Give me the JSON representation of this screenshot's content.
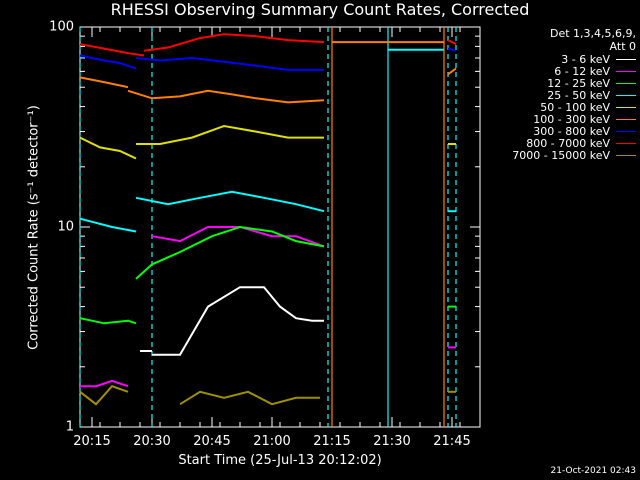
{
  "chart_data": {
    "type": "line",
    "title": "RHESSI Observing Summary Count Rates, Corrected",
    "xlabel": "Start Time (25-Jul-13 20:12:02)",
    "ylabel": "Corrected Count Rate (s⁻¹ detector⁻¹)",
    "yscale": "log",
    "ylim": [
      1,
      100
    ],
    "xlim_minutes": [
      0,
      100
    ],
    "x_ticks": [
      {
        "label": "20:15",
        "minutes": 3
      },
      {
        "label": "20:30",
        "minutes": 18
      },
      {
        "label": "20:45",
        "minutes": 33
      },
      {
        "label": "21:00",
        "minutes": 48
      },
      {
        "label": "21:15",
        "minutes": 63
      },
      {
        "label": "21:30",
        "minutes": 78
      },
      {
        "label": "21:45",
        "minutes": 93
      }
    ],
    "y_ticks": [
      {
        "label": "1",
        "value": 1
      },
      {
        "label": "10",
        "value": 10
      },
      {
        "label": "100",
        "value": 100
      }
    ],
    "legend_header": [
      "Det 1,3,4,5,6,9,",
      "Att 0"
    ],
    "legend_position": "top-right",
    "series": [
      {
        "name": "3 - 6 keV",
        "color": "#ffffff",
        "segments": [
          [
            [
              15,
              2.4
            ],
            [
              18,
              2.4
            ]
          ],
          [
            [
              18,
              2.3
            ],
            [
              25,
              2.3
            ],
            [
              32,
              4
            ],
            [
              40,
              5
            ],
            [
              46,
              5
            ],
            [
              50,
              4
            ],
            [
              54,
              3.5
            ],
            [
              58,
              3.4
            ],
            [
              61,
              3.4
            ]
          ]
        ]
      },
      {
        "name": "6 - 12 keV",
        "color": "#ff00ff",
        "segments": [
          [
            [
              0,
              1.6
            ],
            [
              4,
              1.6
            ],
            [
              8,
              1.7
            ],
            [
              12,
              1.6
            ]
          ],
          [
            [
              18,
              9
            ],
            [
              25,
              8.5
            ],
            [
              32,
              10
            ],
            [
              40,
              10
            ],
            [
              48,
              9
            ],
            [
              54,
              9
            ],
            [
              61,
              8
            ]
          ]
        ]
      },
      {
        "name": "12 - 25 keV",
        "color": "#00ff00",
        "segments": [
          [
            [
              0,
              3.5
            ],
            [
              6,
              3.3
            ],
            [
              12,
              3.4
            ],
            [
              14,
              3.3
            ]
          ],
          [
            [
              14,
              5.5
            ],
            [
              18,
              6.5
            ],
            [
              25,
              7.5
            ],
            [
              33,
              9
            ],
            [
              40,
              10
            ],
            [
              48,
              9.5
            ],
            [
              54,
              8.5
            ],
            [
              61,
              8
            ]
          ]
        ]
      },
      {
        "name": "25 - 50 keV",
        "color": "#00ffff",
        "segments": [
          [
            [
              0,
              11
            ],
            [
              8,
              10
            ],
            [
              14,
              9.5
            ]
          ],
          [
            [
              14,
              14
            ],
            [
              22,
              13
            ],
            [
              30,
              14
            ],
            [
              38,
              15
            ],
            [
              46,
              14
            ],
            [
              54,
              13
            ],
            [
              61,
              12
            ]
          ]
        ]
      },
      {
        "name": "50 - 100 keV",
        "color": "#e0e000",
        "segments": [
          [
            [
              0,
              28
            ],
            [
              5,
              25
            ],
            [
              10,
              24
            ],
            [
              14,
              22
            ]
          ],
          [
            [
              14,
              26
            ],
            [
              20,
              26
            ],
            [
              28,
              28
            ],
            [
              36,
              32
            ],
            [
              44,
              30
            ],
            [
              52,
              28
            ],
            [
              61,
              28
            ]
          ]
        ]
      },
      {
        "name": "100 - 300 keV",
        "color": "#ff8000",
        "segments": [
          [
            [
              0,
              56
            ],
            [
              6,
              53
            ],
            [
              12,
              50
            ]
          ],
          [
            [
              12,
              48
            ],
            [
              18,
              44
            ],
            [
              25,
              45
            ],
            [
              32,
              48
            ],
            [
              38,
              46
            ],
            [
              44,
              44
            ],
            [
              52,
              42
            ],
            [
              61,
              43
            ]
          ]
        ]
      },
      {
        "name": "300 - 800 keV",
        "color": "#0000ff",
        "segments": [
          [
            [
              0,
              72
            ],
            [
              6,
              68
            ],
            [
              10,
              66
            ],
            [
              14,
              62
            ]
          ],
          [
            [
              14,
              70
            ],
            [
              20,
              68
            ],
            [
              28,
              70
            ],
            [
              36,
              67
            ],
            [
              44,
              64
            ],
            [
              52,
              61
            ],
            [
              61,
              61
            ]
          ]
        ]
      },
      {
        "name": "800 - 7000 keV",
        "color": "#ff0000",
        "segments": [
          [
            [
              0,
              82
            ],
            [
              6,
              78
            ],
            [
              12,
              74
            ],
            [
              16,
              72
            ]
          ],
          [
            [
              16,
              76
            ],
            [
              22,
              79
            ],
            [
              30,
              88
            ],
            [
              36,
              92
            ],
            [
              44,
              90
            ],
            [
              52,
              86
            ],
            [
              61,
              84
            ]
          ]
        ]
      },
      {
        "name": "7000 - 15000 keV",
        "color": "#a09000",
        "segments": [
          [
            [
              0,
              1.5
            ],
            [
              4,
              1.3
            ],
            [
              8,
              1.6
            ],
            [
              12,
              1.5
            ]
          ],
          [
            [
              25,
              1.3
            ],
            [
              30,
              1.5
            ],
            [
              36,
              1.4
            ],
            [
              42,
              1.5
            ],
            [
              48,
              1.3
            ],
            [
              54,
              1.4
            ],
            [
              60,
              1.4
            ]
          ]
        ]
      }
    ],
    "right_segments": [
      {
        "color": "#ff8000",
        "points": [
          [
            63,
            84
          ],
          [
            91,
            84
          ]
        ]
      },
      {
        "color": "#00ffff",
        "points": [
          [
            77,
            77
          ],
          [
            91,
            77
          ]
        ]
      },
      {
        "color": "#ff0000",
        "points": [
          [
            92,
            86
          ],
          [
            94,
            82
          ]
        ]
      },
      {
        "color": "#0000ff",
        "points": [
          [
            92,
            78
          ],
          [
            94,
            76
          ]
        ]
      },
      {
        "color": "#ff8000",
        "points": [
          [
            92,
            58
          ],
          [
            94,
            62
          ]
        ]
      },
      {
        "color": "#e0e000",
        "points": [
          [
            92,
            26
          ],
          [
            94,
            26
          ]
        ]
      },
      {
        "color": "#00ffff",
        "points": [
          [
            92,
            12
          ],
          [
            94,
            12
          ]
        ]
      },
      {
        "color": "#00ff00",
        "points": [
          [
            92,
            4
          ],
          [
            94,
            4
          ]
        ]
      },
      {
        "color": "#ff00ff",
        "points": [
          [
            92,
            2.5
          ],
          [
            94,
            2.5
          ]
        ]
      },
      {
        "color": "#a09000",
        "points": [
          [
            92,
            1.5
          ],
          [
            94,
            1.5
          ]
        ]
      }
    ],
    "vertical_lines": [
      {
        "minutes": 0,
        "color": "#00ffff",
        "style": "dashed"
      },
      {
        "minutes": 18,
        "color": "#00ffff",
        "style": "dashed"
      },
      {
        "minutes": 62,
        "color": "#00ffff",
        "style": "dashed"
      },
      {
        "minutes": 63,
        "color": "#ff8000",
        "style": "solid"
      },
      {
        "minutes": 77,
        "color": "#00ffff",
        "style": "solid"
      },
      {
        "minutes": 91,
        "color": "#ff8000",
        "style": "solid"
      },
      {
        "minutes": 92,
        "color": "#00ffff",
        "style": "dashed"
      },
      {
        "minutes": 94,
        "color": "#00ffff",
        "style": "dashed"
      }
    ]
  },
  "footer": "21-Oct-2021 02:43"
}
